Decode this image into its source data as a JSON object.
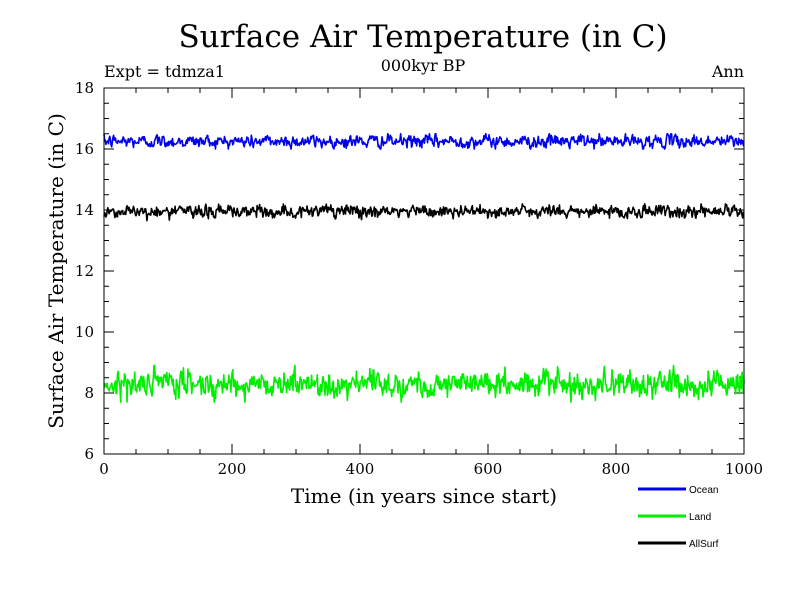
{
  "chart_data": {
    "type": "line",
    "title": "Surface Air Temperature (in C)",
    "subtitle_left": "Expt = tdmza1",
    "subtitle_center": "000kyr BP",
    "subtitle_right": "Ann",
    "xlabel": "Time (in years since start)",
    "ylabel": "Surface Air Temperature (in C)",
    "xlim": [
      0,
      1000
    ],
    "ylim": [
      6,
      18
    ],
    "x_ticks": [
      0,
      200,
      400,
      600,
      800,
      1000
    ],
    "x_tick_labels": [
      "0",
      "200",
      "400",
      "600",
      "800",
      "1000"
    ],
    "y_ticks": [
      6,
      8,
      10,
      12,
      14,
      16,
      18
    ],
    "y_tick_labels": [
      "6",
      "8",
      "10",
      "12",
      "14",
      "16",
      "18"
    ],
    "x_minor_step": 50,
    "y_minor_step": 0.5,
    "grid": false,
    "legend_position": "bottom-right, below plot",
    "n_points": 1000,
    "series": [
      {
        "name": "Ocean",
        "color": "#0000ee",
        "mean": 16.25,
        "noise": 0.1,
        "min": 16.0,
        "max": 16.5
      },
      {
        "name": "Land",
        "color": "#00ee00",
        "mean": 8.3,
        "noise": 0.2,
        "min": 7.7,
        "max": 8.9
      },
      {
        "name": "AllSurf",
        "color": "#000000",
        "mean": 13.95,
        "noise": 0.1,
        "min": 13.6,
        "max": 14.2
      }
    ]
  }
}
